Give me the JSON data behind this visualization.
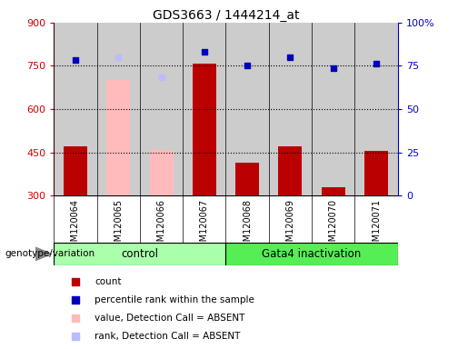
{
  "title": "GDS3663 / 1444214_at",
  "samples": [
    "GSM120064",
    "GSM120065",
    "GSM120066",
    "GSM120067",
    "GSM120068",
    "GSM120069",
    "GSM120070",
    "GSM120071"
  ],
  "count_values": [
    470,
    null,
    null,
    757,
    415,
    470,
    330,
    455
  ],
  "absent_value_bars": [
    null,
    700,
    458,
    null,
    null,
    null,
    null,
    null
  ],
  "percentile_rank": [
    770,
    null,
    null,
    800,
    753,
    780,
    742,
    758
  ],
  "absent_rank_markers": [
    null,
    780,
    710,
    null,
    null,
    null,
    null,
    null
  ],
  "ylim_left": [
    300,
    900
  ],
  "ylim_right": [
    0,
    100
  ],
  "yticks_left": [
    300,
    450,
    600,
    750,
    900
  ],
  "yticks_right": [
    0,
    25,
    50,
    75,
    100
  ],
  "ytick_labels_right": [
    "0",
    "25",
    "50",
    "75",
    "100%"
  ],
  "hlines": [
    450,
    600,
    750
  ],
  "group1_label": "control",
  "group2_label": "Gata4 inactivation",
  "group1_indices": [
    0,
    1,
    2,
    3
  ],
  "group2_indices": [
    4,
    5,
    6,
    7
  ],
  "bar_width": 0.55,
  "count_color": "#bb0000",
  "absent_value_color": "#ffbbbb",
  "percentile_color": "#0000bb",
  "absent_rank_color": "#bbbbff",
  "bg_color": "#cccccc",
  "group1_bg": "#aaffaa",
  "group2_bg": "#55ee55",
  "left_tick_color": "#cc0000",
  "right_tick_color": "#0000cc",
  "legend_items": [
    {
      "label": "count",
      "color": "#bb0000",
      "marker": "s"
    },
    {
      "label": "percentile rank within the sample",
      "color": "#0000bb",
      "marker": "s"
    },
    {
      "label": "value, Detection Call = ABSENT",
      "color": "#ffbbbb",
      "marker": "s"
    },
    {
      "label": "rank, Detection Call = ABSENT",
      "color": "#bbbbff",
      "marker": "s"
    }
  ]
}
